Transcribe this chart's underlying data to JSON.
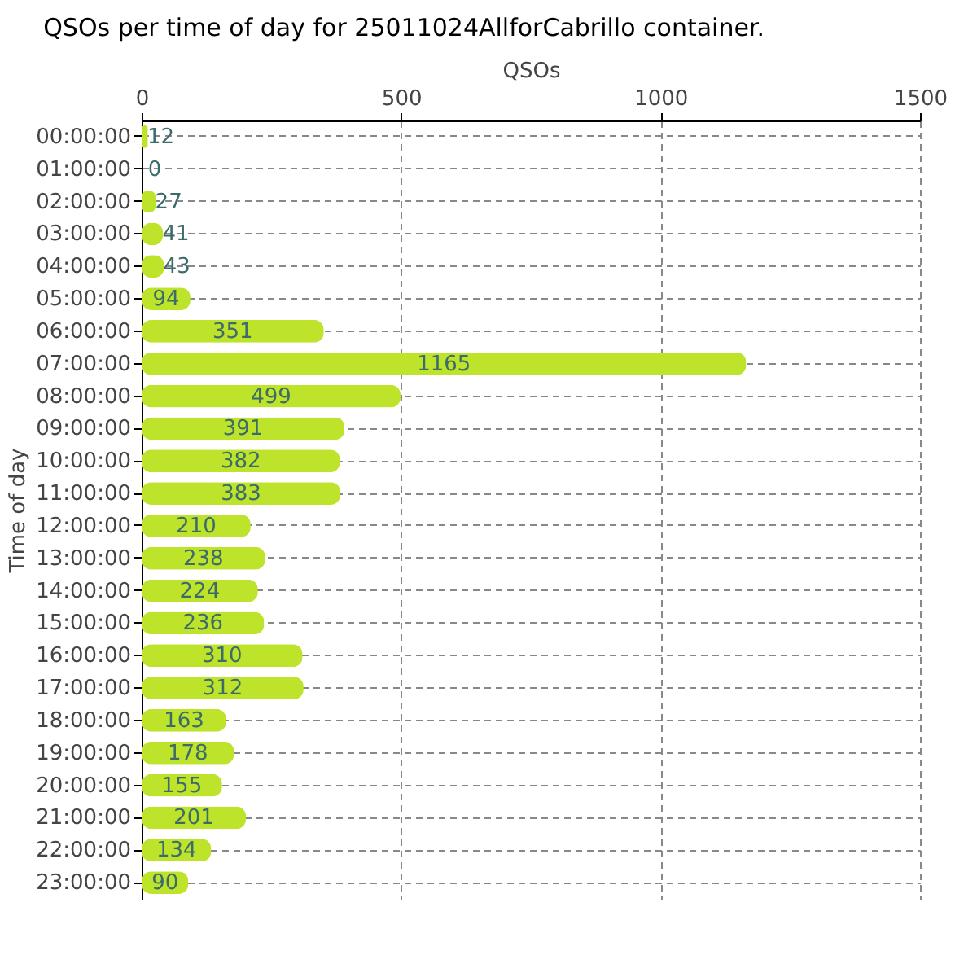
{
  "chart_data": {
    "type": "bar",
    "orientation": "horizontal",
    "title": "QSOs per time of day for 25011024AllforCabrillo container.",
    "xlabel": "QSOs",
    "ylabel": "Time of day",
    "categories": [
      "00:00:00",
      "01:00:00",
      "02:00:00",
      "03:00:00",
      "04:00:00",
      "05:00:00",
      "06:00:00",
      "07:00:00",
      "08:00:00",
      "09:00:00",
      "10:00:00",
      "11:00:00",
      "12:00:00",
      "13:00:00",
      "14:00:00",
      "15:00:00",
      "16:00:00",
      "17:00:00",
      "18:00:00",
      "19:00:00",
      "20:00:00",
      "21:00:00",
      "22:00:00",
      "23:00:00"
    ],
    "values": [
      12,
      0,
      27,
      41,
      43,
      94,
      351,
      1165,
      499,
      391,
      382,
      383,
      210,
      238,
      224,
      236,
      310,
      312,
      163,
      178,
      155,
      201,
      134,
      90
    ],
    "color": "#bde32a",
    "xlim": [
      0,
      1500
    ],
    "xticks": [
      0,
      500,
      1000,
      1500
    ],
    "grid": true,
    "data_labels": true
  }
}
